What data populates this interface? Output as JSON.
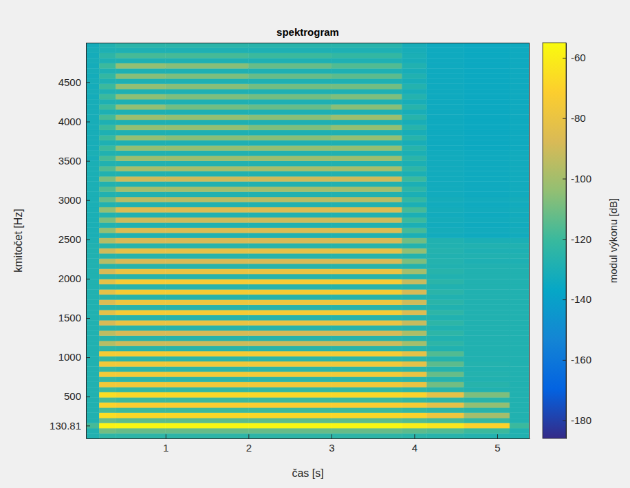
{
  "chart_data": {
    "type": "heatmap",
    "title": "spektrogram",
    "x_label": "čas [s]",
    "y_label": "kmitočet [Hz]",
    "xlim": [
      0.04,
      5.39
    ],
    "ylim": [
      -32.7,
      5003.48
    ],
    "xticks": [
      1,
      2,
      3,
      4,
      5
    ],
    "yticks": [
      130.81,
      500,
      1000,
      1500,
      2000,
      2500,
      3000,
      3500,
      4000,
      4500
    ],
    "grid": false,
    "time_bins": [
      0.04,
      0.2,
      0.4,
      1.0,
      2.0,
      3.0,
      3.85,
      4.15,
      4.6,
      5.15,
      5.39
    ],
    "frequency_bins": [
      -32.7,
      32.7,
      98.11,
      163.51,
      228.92,
      294.32,
      359.73,
      425.13,
      490.54,
      555.94,
      621.35,
      686.75,
      752.16,
      817.56,
      882.97,
      948.37,
      1013.78,
      1079.18,
      1144.59,
      1209.99,
      1275.4,
      1340.8,
      1406.21,
      1471.61,
      1537.02,
      1602.42,
      1667.83,
      1733.23,
      1798.64,
      1864.04,
      1929.45,
      1994.85,
      2060.26,
      2125.66,
      2191.07,
      2256.47,
      2321.88,
      2387.28,
      2452.69,
      2518.09,
      2583.5,
      2648.9,
      2714.31,
      2779.71,
      2845.12,
      2910.52,
      2975.93,
      3041.33,
      3106.74,
      3172.14,
      3237.55,
      3302.95,
      3368.36,
      3433.76,
      3499.17,
      3564.57,
      3629.98,
      3695.38,
      3760.79,
      3826.19,
      3891.6,
      3957.0,
      4022.41,
      4087.81,
      4153.22,
      4218.62,
      4284.03,
      4349.43,
      4414.84,
      4480.24,
      4545.65,
      4611.05,
      4676.46,
      4741.86,
      4807.27,
      4872.67,
      4938.08,
      5003.48
    ],
    "cells": [
      [
        -128,
        -124,
        -124,
        -124,
        -124,
        -124,
        -125,
        -126,
        -127,
        -128
      ],
      [
        -128,
        -110,
        -112,
        -112,
        -112,
        -112,
        -114,
        -116,
        -120,
        -128
      ],
      [
        -118,
        -58,
        -57,
        -57,
        -57,
        -57,
        -60,
        -63,
        -70,
        -120
      ],
      [
        -128,
        -112,
        -114,
        -114,
        -114,
        -114,
        -116,
        -118,
        -122,
        -128
      ],
      [
        -128,
        -66,
        -68,
        -68,
        -68,
        -68,
        -70,
        -78,
        -100,
        -128
      ],
      [
        -128,
        -118,
        -120,
        -120,
        -120,
        -120,
        -122,
        -124,
        -126,
        -128
      ],
      [
        -128,
        -70,
        -72,
        -72,
        -72,
        -72,
        -74,
        -82,
        -104,
        -128
      ],
      [
        -128,
        -118,
        -120,
        -120,
        -120,
        -120,
        -122,
        -124,
        -126,
        -128
      ],
      [
        -128,
        -66,
        -68,
        -68,
        -68,
        -68,
        -70,
        -82,
        -108,
        -128
      ],
      [
        -128,
        -120,
        -122,
        -122,
        -122,
        -122,
        -124,
        -126,
        -128,
        -128
      ],
      [
        -128,
        -76,
        -76,
        -76,
        -76,
        -76,
        -80,
        -110,
        -126,
        -128
      ],
      [
        -128,
        -122,
        -124,
        -124,
        -124,
        -124,
        -125,
        -127,
        -128,
        -128
      ],
      [
        -128,
        -75,
        -75,
        -75,
        -75,
        -75,
        -80,
        -112,
        -127,
        -128
      ],
      [
        -128,
        -122,
        -124,
        -124,
        -124,
        -124,
        -125,
        -127,
        -128,
        -128
      ],
      [
        -128,
        -76,
        -76,
        -76,
        -76,
        -76,
        -82,
        -114,
        -127,
        -128
      ],
      [
        -128,
        -122,
        -124,
        -124,
        -124,
        -124,
        -125,
        -127,
        -128,
        -128
      ],
      [
        -128,
        -74,
        -74,
        -74,
        -74,
        -74,
        -82,
        -116,
        -128,
        -128
      ],
      [
        -128,
        -124,
        -125,
        -125,
        -125,
        -125,
        -126,
        -128,
        -128,
        -128
      ],
      [
        -128,
        -96,
        -90,
        -90,
        -90,
        -90,
        -100,
        -124,
        -128,
        -128
      ],
      [
        -128,
        -126,
        -126,
        -126,
        -126,
        -126,
        -127,
        -128,
        -128,
        -128
      ],
      [
        -128,
        -94,
        -88,
        -88,
        -88,
        -88,
        -98,
        -124,
        -128,
        -128
      ],
      [
        -128,
        -126,
        -126,
        -126,
        -126,
        -126,
        -127,
        -128,
        -128,
        -128
      ],
      [
        -128,
        -88,
        -80,
        -80,
        -80,
        -80,
        -92,
        -124,
        -128,
        -128
      ],
      [
        -128,
        -126,
        -126,
        -126,
        -126,
        -126,
        -127,
        -128,
        -128,
        -128
      ],
      [
        -128,
        -82,
        -74,
        -74,
        -74,
        -74,
        -86,
        -124,
        -128,
        -128
      ],
      [
        -128,
        -126,
        -126,
        -126,
        -126,
        -126,
        -127,
        -128,
        -128,
        -128
      ],
      [
        -128,
        -86,
        -78,
        -78,
        -78,
        -78,
        -90,
        -125,
        -128,
        -128
      ],
      [
        -128,
        -126,
        -126,
        -126,
        -126,
        -126,
        -127,
        -128,
        -128,
        -128
      ],
      [
        -128,
        -82,
        -74,
        -74,
        -74,
        -74,
        -88,
        -125,
        -128,
        -128
      ],
      [
        -128,
        -126,
        -126,
        -126,
        -126,
        -126,
        -127,
        -128,
        -128,
        -128
      ],
      [
        -128,
        -82,
        -74,
        -74,
        -74,
        -74,
        -92,
        -125,
        -128,
        -128
      ],
      [
        -128,
        -126,
        -126,
        -126,
        -126,
        -126,
        -127,
        -128,
        -128,
        -128
      ],
      [
        -128,
        -88,
        -80,
        -80,
        -80,
        -80,
        -100,
        -126,
        -128,
        -128
      ],
      [
        -128,
        -126,
        -126,
        -126,
        -126,
        -126,
        -127,
        -128,
        -128,
        -128
      ],
      [
        -128,
        -96,
        -88,
        -88,
        -88,
        -88,
        -108,
        -127,
        -129,
        -129
      ],
      [
        -128,
        -126,
        -126,
        -126,
        -126,
        -126,
        -127,
        -128,
        -128,
        -128
      ],
      [
        -128,
        -90,
        -82,
        -82,
        -82,
        -82,
        -104,
        -127,
        -129,
        -129
      ],
      [
        -128,
        -126,
        -126,
        -126,
        -126,
        -126,
        -127,
        -128,
        -128,
        -128
      ],
      [
        -129,
        -96,
        -88,
        -88,
        -88,
        -88,
        -110,
        -128,
        -130,
        -130
      ],
      [
        -130,
        -128,
        -128,
        -128,
        -128,
        -128,
        -130,
        -133,
        -134,
        -133
      ],
      [
        -130,
        -104,
        -86,
        -86,
        -86,
        -86,
        -118,
        -132,
        -133,
        -132
      ],
      [
        -130,
        -128,
        -128,
        -128,
        -128,
        -128,
        -130,
        -133,
        -134,
        -133
      ],
      [
        -130,
        -108,
        -90,
        -90,
        -90,
        -90,
        -120,
        -132,
        -133,
        -132
      ],
      [
        -130,
        -128,
        -128,
        -128,
        -128,
        -128,
        -130,
        -133,
        -134,
        -133
      ],
      [
        -130,
        -104,
        -86,
        -86,
        -86,
        -86,
        -118,
        -132,
        -133,
        -132
      ],
      [
        -130,
        -128,
        -128,
        -128,
        -128,
        -128,
        -130,
        -133,
        -134,
        -133
      ],
      [
        -130,
        -112,
        -95,
        -95,
        -95,
        -95,
        -122,
        -132,
        -133,
        -132
      ],
      [
        -130,
        -128,
        -128,
        -128,
        -128,
        -128,
        -130,
        -133,
        -134,
        -133
      ],
      [
        -130,
        -116,
        -100,
        -100,
        -100,
        -100,
        -124,
        -133,
        -134,
        -133
      ],
      [
        -130,
        -128,
        -128,
        -128,
        -128,
        -128,
        -130,
        -133,
        -134,
        -133
      ],
      [
        -130,
        -108,
        -90,
        -90,
        -90,
        -90,
        -120,
        -133,
        -134,
        -133
      ],
      [
        -130,
        -128,
        -128,
        -128,
        -128,
        -128,
        -130,
        -133,
        -134,
        -133
      ],
      [
        -130,
        -116,
        -100,
        -100,
        -100,
        -100,
        -124,
        -133,
        -134,
        -133
      ],
      [
        -130,
        -128,
        -128,
        -128,
        -128,
        -128,
        -130,
        -133,
        -134,
        -133
      ],
      [
        -131,
        -118,
        -102,
        -102,
        -102,
        -102,
        -125,
        -133,
        -134,
        -133
      ],
      [
        -130,
        -128,
        -128,
        -128,
        -128,
        -128,
        -130,
        -133,
        -134,
        -133
      ],
      [
        -131,
        -120,
        -104,
        -104,
        -104,
        -104,
        -126,
        -134,
        -135,
        -134
      ],
      [
        -131,
        -129,
        -129,
        -129,
        -129,
        -129,
        -131,
        -134,
        -135,
        -134
      ],
      [
        -131,
        -120,
        -104,
        -106,
        -106,
        -104,
        -126,
        -134,
        -135,
        -134
      ],
      [
        -131,
        -129,
        -129,
        -129,
        -129,
        -129,
        -131,
        -134,
        -135,
        -134
      ],
      [
        -131,
        -120,
        -104,
        -104,
        -108,
        -104,
        -126,
        -134,
        -135,
        -134
      ],
      [
        -131,
        -129,
        -129,
        -129,
        -129,
        -129,
        -131,
        -134,
        -135,
        -134
      ],
      [
        -131,
        -118,
        -102,
        -104,
        -106,
        -102,
        -126,
        -134,
        -135,
        -134
      ],
      [
        -131,
        -129,
        -129,
        -129,
        -129,
        -129,
        -131,
        -134,
        -135,
        -134
      ],
      [
        -131,
        -120,
        -104,
        -110,
        -112,
        -106,
        -126,
        -134,
        -135,
        -134
      ],
      [
        -131,
        -129,
        -129,
        -129,
        -129,
        -129,
        -131,
        -134,
        -135,
        -134
      ],
      [
        -132,
        -120,
        -105,
        -108,
        -110,
        -108,
        -127,
        -134,
        -135,
        -134
      ],
      [
        -131,
        -129,
        -129,
        -129,
        -129,
        -129,
        -131,
        -134,
        -135,
        -134
      ],
      [
        -132,
        -120,
        -104,
        -106,
        -110,
        -110,
        -127,
        -134,
        -135,
        -134
      ],
      [
        -131,
        -129,
        -129,
        -129,
        -129,
        -129,
        -131,
        -134,
        -135,
        -134
      ],
      [
        -132,
        -122,
        -106,
        -108,
        -112,
        -114,
        -128,
        -134,
        -135,
        -134
      ],
      [
        -131,
        -129,
        -129,
        -129,
        -129,
        -129,
        -131,
        -134,
        -135,
        -134
      ],
      [
        -132,
        -120,
        -104,
        -106,
        -112,
        -116,
        -128,
        -134,
        -135,
        -134
      ],
      [
        -131,
        -129,
        -129,
        -129,
        -129,
        -129,
        -131,
        -134,
        -135,
        -134
      ],
      [
        -132,
        -124,
        -118,
        -118,
        -120,
        -122,
        -130,
        -134,
        -135,
        -134
      ],
      [
        -131,
        -129,
        -129,
        -129,
        -129,
        -129,
        -131,
        -134,
        -135,
        -134
      ],
      [
        -132,
        -128,
        -125,
        -125,
        -126,
        -126,
        -131,
        -134,
        -135,
        -134
      ]
    ],
    "colorbar": {
      "label": "modul výkonu [dB]",
      "range": [
        -186,
        -55
      ],
      "ticks": [
        -60,
        -80,
        -100,
        -120,
        -140,
        -160,
        -180
      ]
    }
  }
}
